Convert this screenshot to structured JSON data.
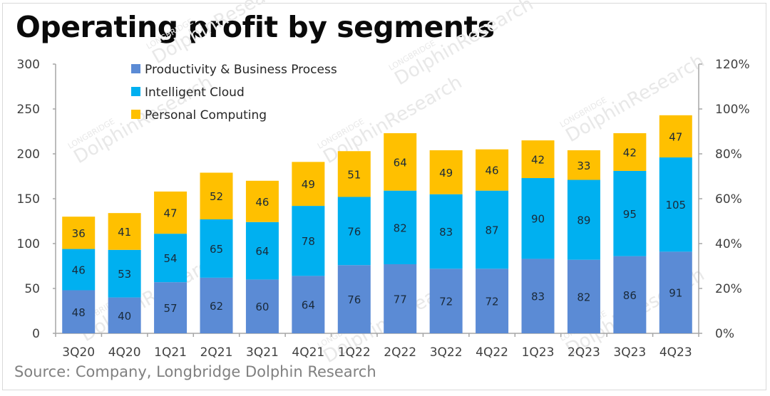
{
  "chart_data": {
    "type": "bar",
    "stacked": true,
    "title": "Operating profit by segments",
    "source": "Source:  Company, Longbridge Dolphin Research",
    "categories": [
      "3Q20",
      "4Q20",
      "1Q21",
      "2Q21",
      "3Q21",
      "4Q21",
      "1Q22",
      "2Q22",
      "3Q22",
      "4Q22",
      "1Q23",
      "2Q23",
      "3Q23",
      "4Q23"
    ],
    "series": [
      {
        "name": "Productivity & Business Process",
        "color": "#5b8bd5",
        "values": [
          48,
          40,
          57,
          62,
          60,
          64,
          76,
          77,
          72,
          72,
          83,
          82,
          86,
          91
        ]
      },
      {
        "name": "Intelligent Cloud",
        "color": "#00b0f0",
        "values": [
          46,
          53,
          54,
          65,
          64,
          78,
          76,
          82,
          83,
          87,
          90,
          89,
          95,
          105
        ]
      },
      {
        "name": "Personal Computing",
        "color": "#ffc000",
        "values": [
          36,
          41,
          47,
          52,
          46,
          49,
          51,
          64,
          49,
          46,
          42,
          33,
          42,
          47
        ]
      }
    ],
    "y_left": {
      "min": 0,
      "max": 300,
      "ticks": [
        "0",
        "50",
        "100",
        "150",
        "200",
        "250",
        "300"
      ]
    },
    "y_right": {
      "min": 0,
      "max": 1.2,
      "ticks": [
        "0%",
        "20%",
        "40%",
        "60%",
        "80%",
        "100%",
        "120%"
      ]
    },
    "legend": "top-left",
    "grid": false,
    "watermark": {
      "top": "LONGBRIDGE",
      "main": "DolphinResearch"
    }
  }
}
